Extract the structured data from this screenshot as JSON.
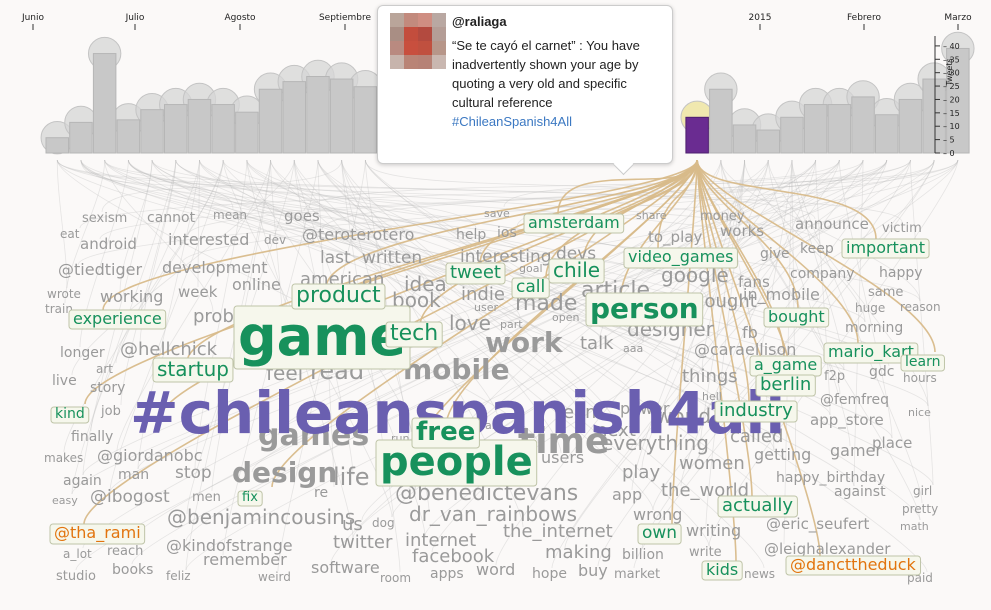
{
  "chart_data": {
    "type": "bar",
    "months": [
      "Junio",
      "Julio",
      "Agosto",
      "Septiembre",
      "",
      "",
      "2015",
      "Febrero",
      "Marzo"
    ],
    "ylabel": "Tweets",
    "yticks": [
      0,
      5,
      10,
      15,
      20,
      25,
      30,
      35,
      40
    ],
    "ylim": [
      0,
      45
    ],
    "values": [
      6,
      12,
      39,
      13,
      17,
      19,
      21,
      19,
      16,
      25,
      28,
      30,
      29,
      26,
      0,
      0,
      0,
      0,
      0,
      0,
      0,
      0,
      0,
      0,
      0,
      0,
      0,
      14,
      25,
      11,
      9,
      14,
      19,
      19,
      22,
      15,
      21,
      29,
      41
    ],
    "highlight_index": 27,
    "words": [
      {
        "text": "#chileanspanish4all",
        "color": "purple",
        "size": 58
      },
      {
        "text": "game",
        "color": "green",
        "size": 54,
        "boxed": true
      },
      {
        "text": "people",
        "color": "green",
        "size": 40,
        "boxed": true
      },
      {
        "text": "time",
        "color": "gray",
        "size": 36
      },
      {
        "text": "games",
        "color": "gray",
        "size": 30
      },
      {
        "text": "design",
        "color": "gray",
        "size": 28
      },
      {
        "text": "mobile",
        "color": "gray",
        "size": 28
      },
      {
        "text": "work",
        "color": "gray",
        "size": 28
      },
      {
        "text": "person",
        "color": "green",
        "size": 28,
        "boxed": true
      },
      {
        "text": "free",
        "color": "green",
        "size": 26,
        "boxed": true
      },
      {
        "text": "product",
        "color": "green",
        "size": 22,
        "boxed": true
      },
      {
        "text": "tech",
        "color": "green",
        "size": 22,
        "boxed": true
      },
      {
        "text": "startup",
        "color": "green",
        "size": 20,
        "boxed": true
      },
      {
        "text": "industry",
        "color": "green",
        "size": 18,
        "boxed": true
      },
      {
        "text": "tweet",
        "color": "green",
        "size": 18,
        "boxed": true
      },
      {
        "text": "chile",
        "color": "green",
        "size": 20,
        "boxed": true
      },
      {
        "text": "call",
        "color": "green",
        "size": 17,
        "boxed": true
      },
      {
        "text": "amsterdam",
        "color": "green",
        "size": 16,
        "boxed": true
      },
      {
        "text": "video_games",
        "color": "green",
        "size": 16,
        "boxed": true
      },
      {
        "text": "important",
        "color": "green",
        "size": 16,
        "boxed": true
      },
      {
        "text": "experience",
        "color": "green",
        "size": 16,
        "boxed": true
      },
      {
        "text": "bought",
        "color": "green",
        "size": 16,
        "boxed": true
      },
      {
        "text": "a_game",
        "color": "green",
        "size": 16,
        "boxed": true
      },
      {
        "text": "mario_kart",
        "color": "green",
        "size": 16,
        "boxed": true
      },
      {
        "text": "berlin",
        "color": "green",
        "size": 18,
        "boxed": true
      },
      {
        "text": "learn",
        "color": "green",
        "size": 14,
        "boxed": true
      },
      {
        "text": "actually",
        "color": "green",
        "size": 18,
        "boxed": true
      },
      {
        "text": "own",
        "color": "green",
        "size": 17,
        "boxed": true
      },
      {
        "text": "kids",
        "color": "green",
        "size": 16,
        "boxed": true
      },
      {
        "text": "kind",
        "color": "green",
        "size": 14,
        "boxed": true
      },
      {
        "text": "fix",
        "color": "green",
        "size": 13,
        "boxed": true
      },
      {
        "text": "@tha_rami",
        "color": "orange",
        "size": 16,
        "boxed": true
      },
      {
        "text": "@dancttheduck",
        "color": "orange",
        "size": 16,
        "boxed": true
      },
      {
        "text": "sexism",
        "color": "gray",
        "size": 13
      },
      {
        "text": "cannot",
        "color": "gray",
        "size": 14
      },
      {
        "text": "mean",
        "color": "gray",
        "size": 12
      },
      {
        "text": "goes",
        "color": "gray",
        "size": 15
      },
      {
        "text": "@teroterotero",
        "color": "gray",
        "size": 16
      },
      {
        "text": "save",
        "color": "gray",
        "size": 11
      },
      {
        "text": "share",
        "color": "gray",
        "size": 11
      },
      {
        "text": "money",
        "color": "gray",
        "size": 13
      },
      {
        "text": "announce",
        "color": "gray",
        "size": 15
      },
      {
        "text": "victim",
        "color": "gray",
        "size": 13
      },
      {
        "text": "eat",
        "color": "gray",
        "size": 12
      },
      {
        "text": "android",
        "color": "gray",
        "size": 15
      },
      {
        "text": "interested",
        "color": "gray",
        "size": 16
      },
      {
        "text": "dev",
        "color": "gray",
        "size": 12
      },
      {
        "text": "last",
        "color": "gray",
        "size": 17
      },
      {
        "text": "written",
        "color": "gray",
        "size": 17
      },
      {
        "text": "help",
        "color": "gray",
        "size": 14
      },
      {
        "text": "ios",
        "color": "gray",
        "size": 14
      },
      {
        "text": "interesting",
        "color": "gray",
        "size": 17
      },
      {
        "text": "devs",
        "color": "gray",
        "size": 17
      },
      {
        "text": "to_play",
        "color": "gray",
        "size": 15
      },
      {
        "text": "works",
        "color": "gray",
        "size": 15
      },
      {
        "text": "give",
        "color": "gray",
        "size": 14
      },
      {
        "text": "keep",
        "color": "gray",
        "size": 14
      },
      {
        "text": "@tiedtiger",
        "color": "gray",
        "size": 16
      },
      {
        "text": "development",
        "color": "gray",
        "size": 16
      },
      {
        "text": "online",
        "color": "gray",
        "size": 16
      },
      {
        "text": "american",
        "color": "gray",
        "size": 18
      },
      {
        "text": "idea",
        "color": "gray",
        "size": 20
      },
      {
        "text": "goal",
        "color": "gray",
        "size": 11
      },
      {
        "text": "google",
        "color": "gray",
        "size": 20
      },
      {
        "text": "fans",
        "color": "gray",
        "size": 15
      },
      {
        "text": "company",
        "color": "gray",
        "size": 14
      },
      {
        "text": "happy",
        "color": "gray",
        "size": 14
      },
      {
        "text": "wrote",
        "color": "gray",
        "size": 12
      },
      {
        "text": "train",
        "color": "gray",
        "size": 12
      },
      {
        "text": "working",
        "color": "gray",
        "size": 16
      },
      {
        "text": "week",
        "color": "gray",
        "size": 15
      },
      {
        "text": "book",
        "color": "gray",
        "size": 20
      },
      {
        "text": "indie",
        "color": "gray",
        "size": 18
      },
      {
        "text": "user",
        "color": "gray",
        "size": 11
      },
      {
        "text": "made",
        "color": "gray",
        "size": 22
      },
      {
        "text": "article",
        "color": "gray",
        "size": 22
      },
      {
        "text": "thought",
        "color": "gray",
        "size": 18
      },
      {
        "text": "in_mobile",
        "color": "gray",
        "size": 16
      },
      {
        "text": "same",
        "color": "gray",
        "size": 13
      },
      {
        "text": "huge",
        "color": "gray",
        "size": 12
      },
      {
        "text": "reason",
        "color": "gray",
        "size": 12
      },
      {
        "text": "problem",
        "color": "gray",
        "size": 18
      },
      {
        "text": "love",
        "color": "gray",
        "size": 20
      },
      {
        "text": "part",
        "color": "gray",
        "size": 11
      },
      {
        "text": "open",
        "color": "gray",
        "size": 11
      },
      {
        "text": "fb",
        "color": "gray",
        "size": 16
      },
      {
        "text": "designer",
        "color": "gray",
        "size": 20
      },
      {
        "text": "morning",
        "color": "gray",
        "size": 14
      },
      {
        "text": "longer",
        "color": "gray",
        "size": 14
      },
      {
        "text": "@hellchick",
        "color": "gray",
        "size": 18
      },
      {
        "text": "art",
        "color": "gray",
        "size": 12
      },
      {
        "text": "feel",
        "color": "gray",
        "size": 20
      },
      {
        "text": "read",
        "color": "gray",
        "size": 24
      },
      {
        "text": "talk",
        "color": "gray",
        "size": 18
      },
      {
        "text": "aaa",
        "color": "gray",
        "size": 11
      },
      {
        "text": "@caraellison",
        "color": "gray",
        "size": 16
      },
      {
        "text": "gdc",
        "color": "gray",
        "size": 14
      },
      {
        "text": "hours",
        "color": "gray",
        "size": 12
      },
      {
        "text": "live",
        "color": "gray",
        "size": 14
      },
      {
        "text": "story",
        "color": "gray",
        "size": 14
      },
      {
        "text": "things",
        "color": "gray",
        "size": 18
      },
      {
        "text": "f2p",
        "color": "gray",
        "size": 13
      },
      {
        "text": "job",
        "color": "gray",
        "size": 13
      },
      {
        "text": "team",
        "color": "gray",
        "size": 18
      },
      {
        "text": "power",
        "color": "gray",
        "size": 16
      },
      {
        "text": "hell",
        "color": "gray",
        "size": 11
      },
      {
        "text": "@femfreq",
        "color": "gray",
        "size": 14
      },
      {
        "text": "nice",
        "color": "gray",
        "size": 11
      },
      {
        "text": "app_store",
        "color": "gray",
        "size": 15
      },
      {
        "text": "finally",
        "color": "gray",
        "size": 14
      },
      {
        "text": "run",
        "color": "gray",
        "size": 11
      },
      {
        "text": "hard",
        "color": "gray",
        "size": 11
      },
      {
        "text": "next",
        "color": "gray",
        "size": 18
      },
      {
        "text": "world",
        "color": "gray",
        "size": 20
      },
      {
        "text": "called",
        "color": "gray",
        "size": 18
      },
      {
        "text": "place",
        "color": "gray",
        "size": 15
      },
      {
        "text": "makes",
        "color": "gray",
        "size": 12
      },
      {
        "text": "@giordanobc",
        "color": "gray",
        "size": 16
      },
      {
        "text": "everything",
        "color": "gray",
        "size": 20
      },
      {
        "text": "getting",
        "color": "gray",
        "size": 16
      },
      {
        "text": "gamer",
        "color": "gray",
        "size": 16
      },
      {
        "text": "again",
        "color": "gray",
        "size": 14
      },
      {
        "text": "man",
        "color": "gray",
        "size": 14
      },
      {
        "text": "stop",
        "color": "gray",
        "size": 17
      },
      {
        "text": "life",
        "color": "gray",
        "size": 24
      },
      {
        "text": "users",
        "color": "gray",
        "size": 16
      },
      {
        "text": "women",
        "color": "gray",
        "size": 18
      },
      {
        "text": "happy_birthday",
        "color": "gray",
        "size": 14
      },
      {
        "text": "easy",
        "color": "gray",
        "size": 11
      },
      {
        "text": "@ibogost",
        "color": "gray",
        "size": 17
      },
      {
        "text": "men",
        "color": "gray",
        "size": 13
      },
      {
        "text": "re",
        "color": "gray",
        "size": 14
      },
      {
        "text": "@benedictevans",
        "color": "gray",
        "size": 22
      },
      {
        "text": "play",
        "color": "gray",
        "size": 18
      },
      {
        "text": "the_world",
        "color": "gray",
        "size": 18
      },
      {
        "text": "against",
        "color": "gray",
        "size": 14
      },
      {
        "text": "girl",
        "color": "gray",
        "size": 12
      },
      {
        "text": "@benjamincousins",
        "color": "gray",
        "size": 20
      },
      {
        "text": "dr_van_rainbows",
        "color": "gray",
        "size": 20
      },
      {
        "text": "app",
        "color": "gray",
        "size": 16
      },
      {
        "text": "pretty",
        "color": "gray",
        "size": 12
      },
      {
        "text": "us",
        "color": "gray",
        "size": 18
      },
      {
        "text": "dog",
        "color": "gray",
        "size": 12
      },
      {
        "text": "wrong",
        "color": "gray",
        "size": 16
      },
      {
        "text": "@eric_seufert",
        "color": "gray",
        "size": 15
      },
      {
        "text": "math",
        "color": "gray",
        "size": 11
      },
      {
        "text": "a_lot",
        "color": "gray",
        "size": 12
      },
      {
        "text": "reach",
        "color": "gray",
        "size": 13
      },
      {
        "text": "@kindofstrange",
        "color": "gray",
        "size": 16
      },
      {
        "text": "twitter",
        "color": "gray",
        "size": 18
      },
      {
        "text": "internet",
        "color": "gray",
        "size": 18
      },
      {
        "text": "the_internet",
        "color": "gray",
        "size": 18
      },
      {
        "text": "writing",
        "color": "gray",
        "size": 16
      },
      {
        "text": "@leighalexander",
        "color": "gray",
        "size": 15
      },
      {
        "text": "studio",
        "color": "gray",
        "size": 13
      },
      {
        "text": "books",
        "color": "gray",
        "size": 14
      },
      {
        "text": "feliz",
        "color": "gray",
        "size": 12
      },
      {
        "text": "remember",
        "color": "gray",
        "size": 16
      },
      {
        "text": "weird",
        "color": "gray",
        "size": 12
      },
      {
        "text": "software",
        "color": "gray",
        "size": 16
      },
      {
        "text": "facebook",
        "color": "gray",
        "size": 18
      },
      {
        "text": "making",
        "color": "gray",
        "size": 18
      },
      {
        "text": "billion",
        "color": "gray",
        "size": 14
      },
      {
        "text": "write",
        "color": "gray",
        "size": 13
      },
      {
        "text": "room",
        "color": "gray",
        "size": 12
      },
      {
        "text": "apps",
        "color": "gray",
        "size": 14
      },
      {
        "text": "word",
        "color": "gray",
        "size": 16
      },
      {
        "text": "hope",
        "color": "gray",
        "size": 14
      },
      {
        "text": "buy",
        "color": "gray",
        "size": 16
      },
      {
        "text": "market",
        "color": "gray",
        "size": 13
      },
      {
        "text": "news",
        "color": "gray",
        "size": 12
      },
      {
        "text": "paid",
        "color": "gray",
        "size": 12
      }
    ],
    "colors": {
      "bar": "#c8c8c8",
      "bar_stroke": "#b6b6b6",
      "bubble": "#d6d6d6",
      "highlight_bar": "#6a2c91",
      "highlight_bubble": "#eee5a6",
      "link": "#d8bb8a",
      "purple": "#6a5fb0",
      "green": "#17915c",
      "orange": "#e2740e",
      "gray": "#9a9a9a",
      "box_bg": "#f6f7ec",
      "box_stroke": "#bfc4a8"
    }
  },
  "tooltip": {
    "user": "@raliaga",
    "text": "“Se te cayó el carnet” : You have inadvertently shown your age by quoting a very old and specific cultural reference",
    "hashtag": "#ChileanSpanish4All",
    "avatar_colors": [
      "#b9a59a",
      "#c28a7d",
      "#cf8e82",
      "#b9a8a2",
      "#a98e84",
      "#c34d3d",
      "#b34a3f",
      "#b49d96",
      "#b98a80",
      "#c84f3e",
      "#c0503f",
      "#b79689",
      "#c7b4ac",
      "#b98476",
      "#b68276",
      "#c9b7b0"
    ]
  }
}
